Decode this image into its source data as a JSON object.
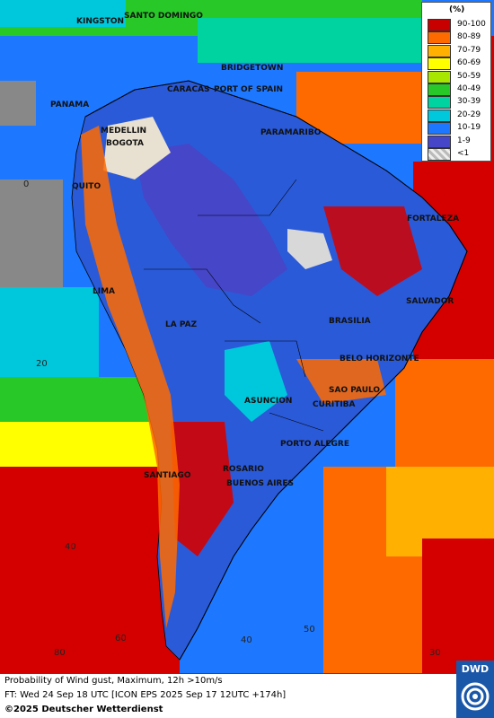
{
  "legend": {
    "title": "(%)",
    "items": [
      {
        "label": "90-100",
        "color": "#c80000"
      },
      {
        "label": "80-89",
        "color": "#ff6a00"
      },
      {
        "label": "70-79",
        "color": "#ffb000"
      },
      {
        "label": "60-69",
        "color": "#ffff00"
      },
      {
        "label": "50-59",
        "color": "#a8e600"
      },
      {
        "label": "40-49",
        "color": "#28c828"
      },
      {
        "label": "30-39",
        "color": "#00d2a0"
      },
      {
        "label": "20-29",
        "color": "#00c8dc"
      },
      {
        "label": "10-19",
        "color": "#1e78ff"
      },
      {
        "label": "1-9",
        "color": "#4646c8"
      },
      {
        "label": "<1",
        "color": "#d8d8d8"
      }
    ]
  },
  "cities": [
    {
      "id": "kingston",
      "name": "KINGSTON"
    },
    {
      "id": "santo-domingo",
      "name": "SANTO DOMINGO"
    },
    {
      "id": "bridgetown",
      "name": "BRIDGETOWN"
    },
    {
      "id": "panama",
      "name": "PANAMA"
    },
    {
      "id": "caracas",
      "name": "CARACAS"
    },
    {
      "id": "port-of-spain",
      "name": "PORT OF SPAIN"
    },
    {
      "id": "medellin",
      "name": "MEDELLIN"
    },
    {
      "id": "bogota",
      "name": "BOGOTA"
    },
    {
      "id": "paramaribo",
      "name": "PARAMARIBO"
    },
    {
      "id": "quito",
      "name": "QUITO"
    },
    {
      "id": "fortaleza",
      "name": "FORTALEZA"
    },
    {
      "id": "lima",
      "name": "LIMA"
    },
    {
      "id": "salvador",
      "name": "SALVADOR"
    },
    {
      "id": "la-paz",
      "name": "LA PAZ"
    },
    {
      "id": "brasilia",
      "name": "BRASILIA"
    },
    {
      "id": "belo-horizonte",
      "name": "BELO HORIZONTE"
    },
    {
      "id": "sao-paulo",
      "name": "SAO PAULO"
    },
    {
      "id": "asuncion",
      "name": "ASUNCION"
    },
    {
      "id": "curitiba",
      "name": "CURITIBA"
    },
    {
      "id": "porto-alegre",
      "name": "PORTO ALEGRE"
    },
    {
      "id": "rosario",
      "name": "ROSARIO"
    },
    {
      "id": "santiago",
      "name": "SANTIAGO"
    },
    {
      "id": "buenos-aires",
      "name": "BUENOS AIRES"
    }
  ],
  "grid_labels": {
    "lat_0": "0",
    "lat_20": "20",
    "lat_40": "40",
    "lon_60": "60",
    "lon_40": "40",
    "lon_50": "50",
    "lon_30": "30",
    "lon_80": "80"
  },
  "caption": {
    "line1": "Probability of Wind gust, Maximum, 12h >10m/s",
    "line2": "FT: Wed 24 Sep 18 UTC [ICON EPS 2025 Sep 17 12UTC +174h]",
    "line3": "©2025 Deutscher Wetterdienst"
  },
  "logo": {
    "text": "DWD"
  }
}
